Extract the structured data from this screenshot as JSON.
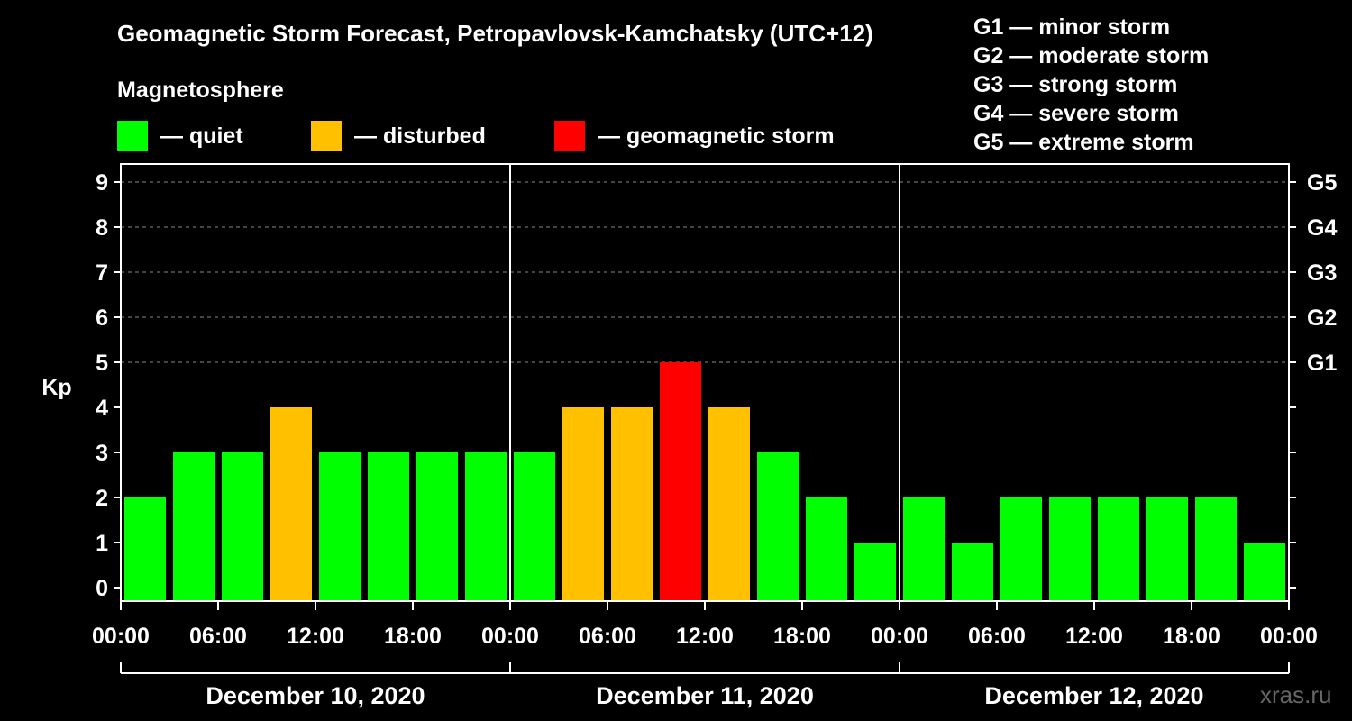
{
  "title": "Geomagnetic Storm Forecast, Petropavlovsk-Kamchatsky (UTC+12)",
  "legend": {
    "heading": "Magnetosphere",
    "items": [
      {
        "label": "— quiet",
        "color": "#00ff00"
      },
      {
        "label": "— disturbed",
        "color": "#ffc000"
      },
      {
        "label": "— geomagnetic storm",
        "color": "#ff0000"
      }
    ]
  },
  "g_scale": [
    "G1 — minor storm",
    "G2 — moderate storm",
    "G3 — strong storm",
    "G4 — severe storm",
    "G5 — extreme storm"
  ],
  "watermark": "xras.ru",
  "chart_data": {
    "type": "bar",
    "ylabel": "Kp",
    "ylim": [
      0,
      9
    ],
    "y_ticks": [
      "0",
      "1",
      "2",
      "3",
      "4",
      "5",
      "6",
      "7",
      "8",
      "9"
    ],
    "right_ticks": [
      {
        "kp": 5,
        "label": "G1"
      },
      {
        "kp": 6,
        "label": "G2"
      },
      {
        "kp": 7,
        "label": "G3"
      },
      {
        "kp": 8,
        "label": "G4"
      },
      {
        "kp": 9,
        "label": "G5"
      }
    ],
    "x_tick_labels": [
      "00:00",
      "06:00",
      "12:00",
      "18:00",
      "00:00",
      "06:00",
      "12:00",
      "18:00",
      "00:00",
      "06:00",
      "12:00",
      "18:00",
      "00:00"
    ],
    "days": [
      "December 10, 2020",
      "December 11, 2020",
      "December 12, 2020"
    ],
    "grid": "horizontal dashed at Kp 5-9",
    "values": [
      2,
      3,
      3,
      4,
      3,
      3,
      3,
      3,
      3,
      4,
      4,
      5,
      4,
      3,
      2,
      1,
      2,
      1,
      2,
      2,
      2,
      2,
      2,
      1
    ],
    "colors": {
      "quiet": "#00ff00",
      "disturbed": "#ffc000",
      "storm": "#ff0000"
    }
  }
}
